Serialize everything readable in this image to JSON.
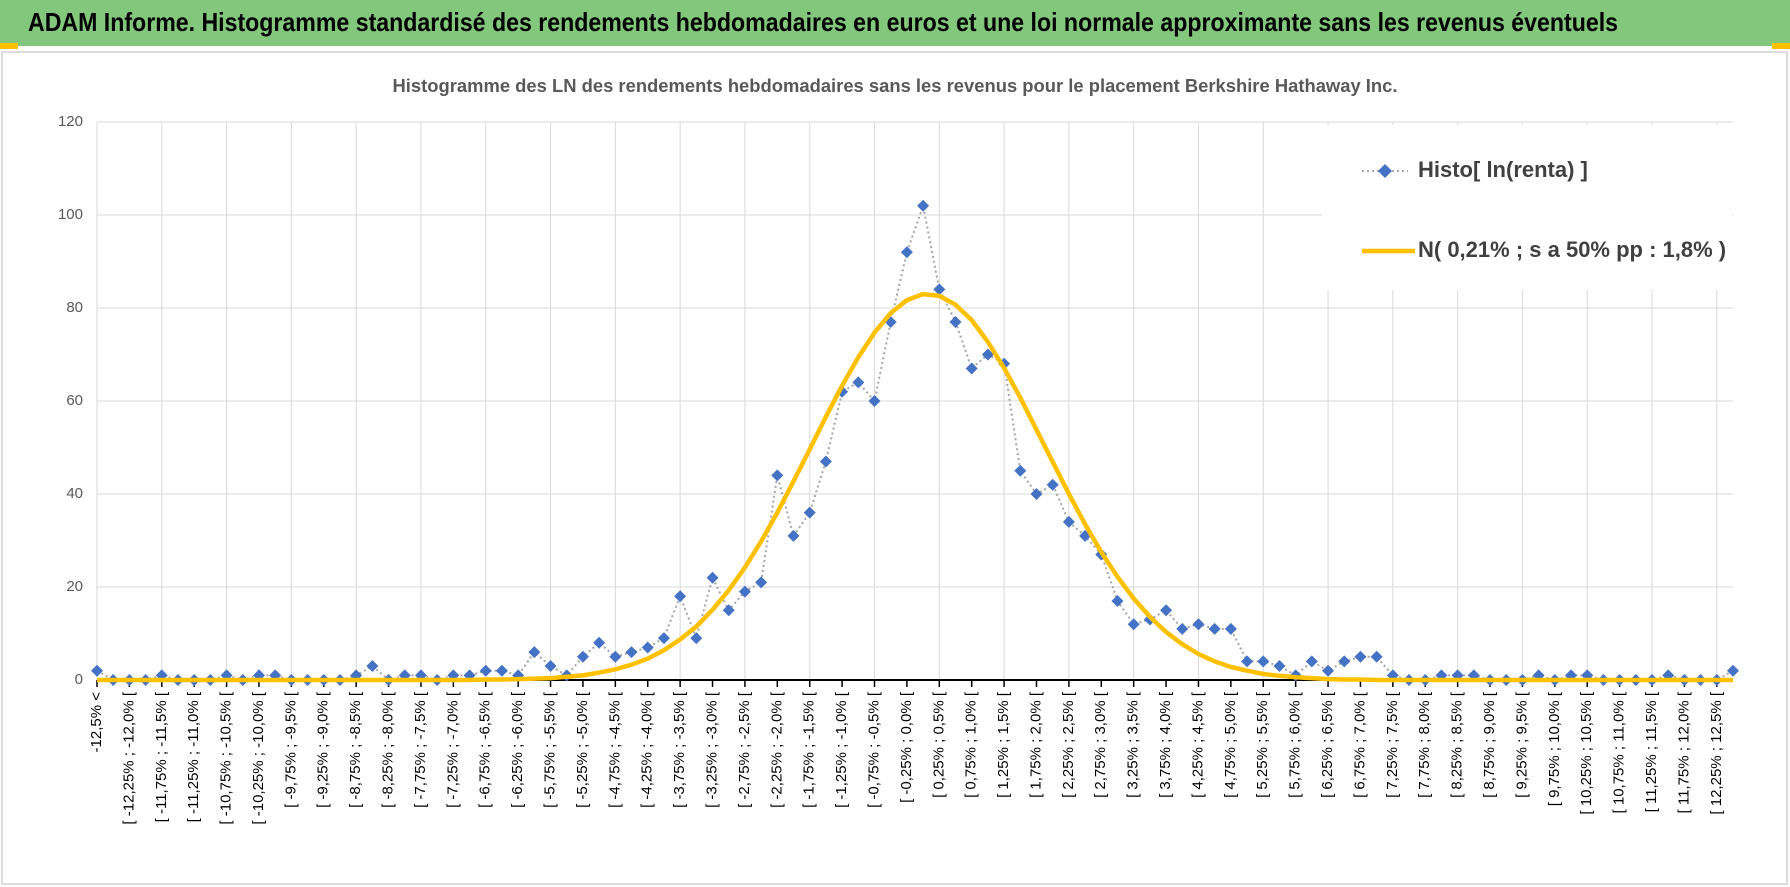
{
  "header_title": "ADAM Informe. Histogramme standardisé des rendements hebdomadaires en euros et une loi normale approximante sans les revenus éventuels",
  "chart_data": {
    "type": "line",
    "title": "Histogramme  des LN des rendements  hebdomadaires  sans les  revenus  pour le placement  Berkshire  Hathaway Inc.",
    "categories": [
      "-12,5% <",
      null,
      "[ -12,25% ; -12,0% [",
      null,
      "[ -11,75% ; -11,5% [",
      null,
      "[ -11,25% ; -11,0% [",
      null,
      "[ -10,75% ; -10,5% [",
      null,
      "[ -10,25% ; -10,0% [",
      null,
      "[ -9,75% ; -9,5% [",
      null,
      "[ -9,25% ; -9,0% [",
      null,
      "[ -8,75% ; -8,5% [",
      null,
      "[ -8,25% ; -8,0% [",
      null,
      "[ -7,75% ; -7,5% [",
      null,
      "[ -7,25% ; -7,0% [",
      null,
      "[ -6,75% ; -6,5% [",
      null,
      "[ -6,25% ; -6,0% [",
      null,
      "[ -5,75% ; -5,5% [",
      null,
      "[ -5,25% ; -5,0% [",
      null,
      "[ -4,75% ; -4,5% [",
      null,
      "[ -4,25% ; -4,0% [",
      null,
      "[ -3,75% ; -3,5% [",
      null,
      "[ -3,25% ; -3,0% [",
      null,
      "[ -2,75% ; -2,5% [",
      null,
      "[ -2,25% ; -2,0% [",
      null,
      "[ -1,75% ; -1,5% [",
      null,
      "[ -1,25% ; -1,0% [",
      null,
      "[ -0,75% ; -0,5% [",
      null,
      "[ -0,25% ; 0,0% [",
      null,
      "[ 0,25% ; 0,5% [",
      null,
      "[ 0,75% ; 1,0% [",
      null,
      "[ 1,25% ; 1,5% [",
      null,
      "[ 1,75% ; 2,0% [",
      null,
      "[ 2,25% ; 2,5% [",
      null,
      "[ 2,75% ; 3,0% [",
      null,
      "[ 3,25% ; 3,5% [",
      null,
      "[ 3,75% ; 4,0% [",
      null,
      "[ 4,25% ; 4,5% [",
      null,
      "[ 4,75% ; 5,0% [",
      null,
      "[ 5,25% ; 5,5% [",
      null,
      "[ 5,75% ; 6,0% [",
      null,
      "[ 6,25% ; 6,5% [",
      null,
      "[ 6,75% ; 7,0% [",
      null,
      "[ 7,25% ; 7,5% [",
      null,
      "[ 7,75% ; 8,0% [",
      null,
      "[ 8,25% ; 8,5% [",
      null,
      "[ 8,75% ; 9,0% [",
      null,
      "[ 9,25% ; 9,5% [",
      null,
      "[ 9,75% ; 10,0% [",
      null,
      "[ 10,25% ; 10,5% [",
      null,
      "[ 10,75% ; 11,0% [",
      null,
      "[ 11,25% ; 11,5% [",
      null,
      "[ 11,75% ; 12,0% [",
      null,
      "[ 12,25% ; 12,5% [",
      null
    ],
    "series": [
      {
        "name": "Histo[ ln(renta) ]",
        "color": "#4472c4",
        "values": [
          2,
          0,
          0,
          0,
          1,
          0,
          0,
          0,
          1,
          0,
          1,
          1,
          0,
          0,
          0,
          0,
          1,
          3,
          0,
          1,
          1,
          0,
          1,
          1,
          2,
          2,
          1,
          6,
          3,
          1,
          5,
          8,
          5,
          6,
          7,
          9,
          18,
          9,
          22,
          15,
          19,
          21,
          44,
          31,
          36,
          47,
          62,
          64,
          60,
          77,
          92,
          102,
          84,
          77,
          67,
          70,
          68,
          45,
          40,
          42,
          34,
          31,
          27,
          17,
          12,
          13,
          15,
          11,
          12,
          11,
          11,
          4,
          4,
          3,
          1,
          4,
          2,
          4,
          5,
          5,
          1,
          0,
          0,
          1,
          1,
          1,
          0,
          0,
          0,
          1,
          0,
          1,
          1,
          0,
          0,
          0,
          0,
          1,
          0,
          0,
          0,
          2
        ]
      },
      {
        "name": "N( 0,21% ; s a 50% pp : 1,8% )",
        "color": "#ffc000",
        "values": [
          0,
          0,
          0,
          0,
          0,
          0,
          0,
          0,
          0,
          0,
          0,
          0,
          0,
          0,
          0,
          0,
          0,
          0,
          0,
          0,
          0,
          0,
          0,
          0,
          0.1,
          0.1,
          0.2,
          0.3,
          0.4,
          0.7,
          1.0,
          1.6,
          2.3,
          3.3,
          4.6,
          6.4,
          8.7,
          11.5,
          15.1,
          19.3,
          24.2,
          29.8,
          36.0,
          42.7,
          49.6,
          56.6,
          63.3,
          69.4,
          74.7,
          78.9,
          81.7,
          83.0,
          82.6,
          80.7,
          77.4,
          72.7,
          67.1,
          60.7,
          53.8,
          46.9,
          40.0,
          33.5,
          27.5,
          22.2,
          17.5,
          13.6,
          10.3,
          7.7,
          5.6,
          4.0,
          2.8,
          2.0,
          1.3,
          0.9,
          0.6,
          0.4,
          0.2,
          0.1,
          0.1,
          0,
          0,
          0,
          0,
          0,
          0,
          0,
          0,
          0,
          0,
          0,
          0,
          0,
          0,
          0,
          0,
          0,
          0,
          0,
          0,
          0,
          0,
          0
        ]
      }
    ],
    "ylim": [
      0,
      120
    ],
    "yticks": [
      0,
      20,
      40,
      60,
      80,
      100,
      120
    ],
    "grid": true,
    "legend": "top-right"
  }
}
